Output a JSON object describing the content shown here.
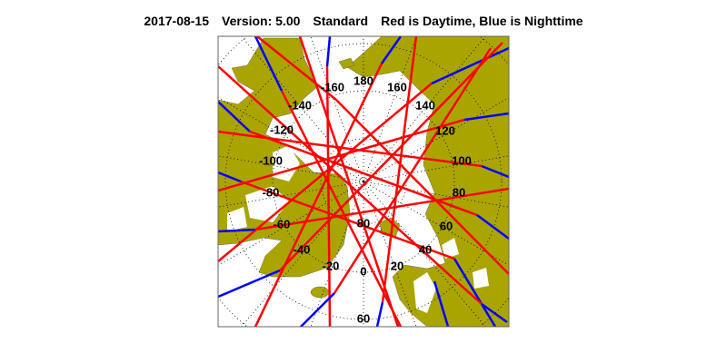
{
  "header": {
    "date": "2017-08-15",
    "version": "Version: 5.00",
    "mode": "Standard",
    "legend": "Red is Daytime, Blue is Nighttime"
  },
  "map": {
    "projection": "north polar stereographic",
    "colors": {
      "land": "#aaa400",
      "ocean": "#ffffff",
      "day": "#ff0000",
      "night": "#0000ff",
      "grid": "#000000"
    },
    "longitude_labels": [
      "180",
      "-160",
      "160",
      "-140",
      "140",
      "-120",
      "120",
      "-100",
      "100",
      "-80",
      "80",
      "-60",
      "60",
      "-40",
      "40",
      "-20",
      "20",
      "0"
    ],
    "latitude_labels": [
      "80",
      "60"
    ]
  }
}
